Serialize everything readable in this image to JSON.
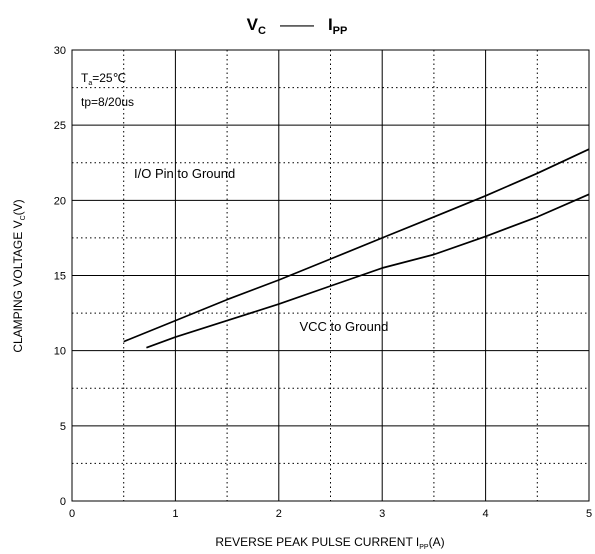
{
  "chart_data": {
    "type": "line",
    "title": {
      "left_main": "V",
      "left_sub": "C",
      "dash": "——",
      "right_main": "I",
      "right_sub": "PP"
    },
    "xlabel": {
      "main": "REVERSE PEAK PULSE CURRENT  I",
      "sub": "PP",
      "unit": "(A)"
    },
    "ylabel": {
      "main": "CLAMPING VOLTAGE  V",
      "sub": "C",
      "unit": "(V)"
    },
    "xlim": [
      0,
      5
    ],
    "ylim": [
      0,
      30
    ],
    "x_ticks": [
      0,
      1,
      2,
      3,
      4,
      5
    ],
    "y_ticks": [
      0,
      5,
      10,
      15,
      20,
      25,
      30
    ],
    "x_ticks_labels": [
      "0",
      "1",
      "2",
      "3",
      "4",
      "5"
    ],
    "y_ticks_labels": [
      "0",
      "5",
      "10",
      "15",
      "20",
      "25",
      "30"
    ],
    "grid": {
      "major": "solid",
      "minor": "dotted",
      "x_minor_step": 0.5,
      "y_minor_step": 2.5
    },
    "annotation": {
      "temp_main": "T",
      "temp_sub": "a",
      "temp_value": "=25℃",
      "pulse": "tp=8/20us"
    },
    "series": [
      {
        "name": "I/O Pin to Ground",
        "x": [
          0.5,
          1.0,
          1.5,
          2.0,
          2.5,
          3.0,
          3.5,
          4.0,
          4.5,
          5.0
        ],
        "values": [
          10.6,
          12.0,
          13.4,
          14.7,
          16.1,
          17.5,
          18.9,
          20.3,
          21.8,
          23.4
        ],
        "label_pos": [
          0.6,
          21.5
        ]
      },
      {
        "name": "VCC to Ground",
        "x": [
          0.72,
          1.0,
          1.5,
          2.0,
          2.5,
          3.0,
          3.5,
          4.0,
          4.5,
          5.0
        ],
        "values": [
          10.2,
          10.9,
          12.0,
          13.1,
          14.3,
          15.5,
          16.4,
          17.6,
          18.9,
          20.4
        ],
        "label_pos": [
          2.2,
          11.3
        ]
      }
    ]
  }
}
